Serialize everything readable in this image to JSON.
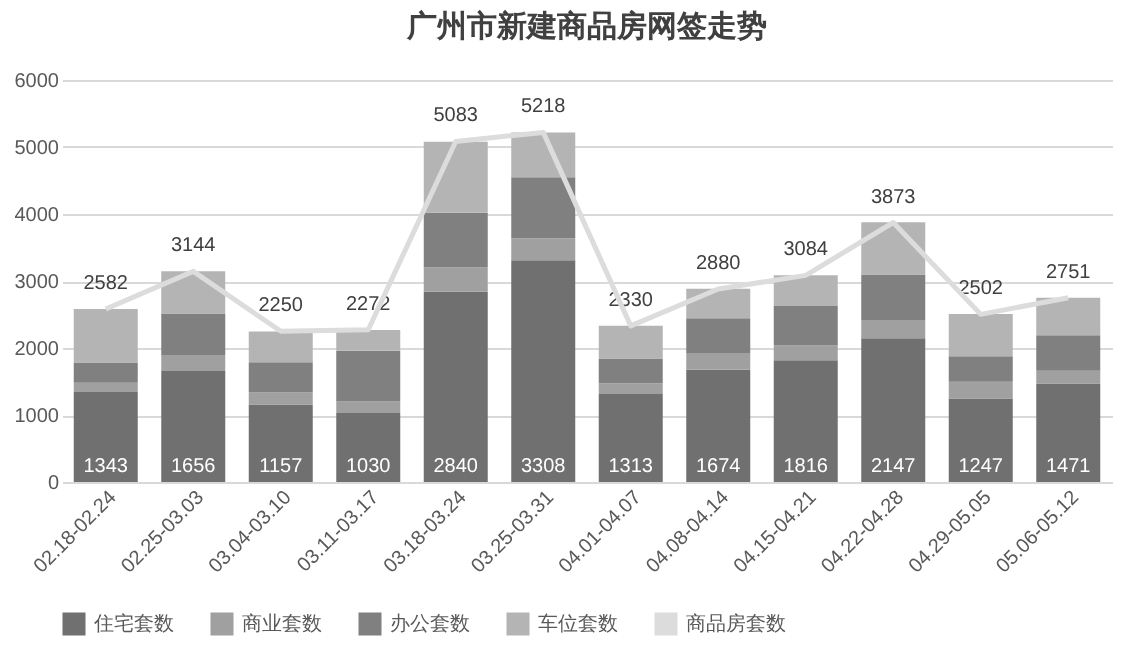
{
  "chart_data": {
    "type": "bar",
    "title": "广州市新建商品房网签走势",
    "stacked": true,
    "categories": [
      "02.18-02.24",
      "02.25-03.03",
      "03.04-03.10",
      "03.11-03.17",
      "03.18-03.24",
      "03.25-03.31",
      "04.01-04.07",
      "04.08-04.14",
      "04.15-04.21",
      "04.22-04.28",
      "04.29-05.05",
      "05.06-05.12"
    ],
    "series": [
      {
        "name": "住宅套数",
        "color": "#707070",
        "values": [
          1343,
          1656,
          1157,
          1030,
          2840,
          3308,
          1313,
          1674,
          1816,
          2147,
          1247,
          1471
        ],
        "value_labels": [
          "1343",
          "1656",
          "1157",
          "1030",
          "2840",
          "3308",
          "1313",
          "1674",
          "1816",
          "2147",
          "1247",
          "1471"
        ]
      },
      {
        "name": "商业套数",
        "color": "#a0a0a0",
        "values": [
          140,
          240,
          180,
          170,
          360,
          330,
          160,
          250,
          220,
          270,
          250,
          190
        ]
      },
      {
        "name": "办公套数",
        "color": "#808080",
        "values": [
          300,
          620,
          450,
          760,
          820,
          910,
          370,
          520,
          590,
          680,
          380,
          530
        ]
      },
      {
        "name": "车位套数",
        "color": "#b4b4b4",
        "values": [
          800,
          630,
          460,
          310,
          1060,
          670,
          490,
          440,
          460,
          780,
          630,
          560
        ]
      },
      {
        "name": "商品房套数",
        "type": "line",
        "color": "#dcdcdc",
        "values": [
          2582,
          3144,
          2250,
          2272,
          5083,
          5218,
          2330,
          2880,
          3084,
          3873,
          2502,
          2751
        ],
        "value_labels": [
          "2582",
          "3144",
          "2250",
          "2272",
          "5083",
          "5218",
          "2330",
          "2880",
          "3084",
          "3873",
          "2502",
          "2751"
        ]
      }
    ],
    "ylim": [
      0,
      6000
    ],
    "yticks": [
      0,
      1000,
      2000,
      3000,
      4000,
      5000,
      6000
    ],
    "grid": "y",
    "legend": "bottom"
  }
}
